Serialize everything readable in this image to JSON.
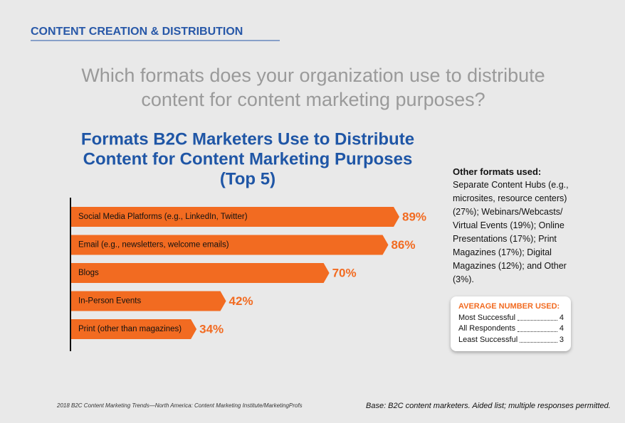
{
  "header": "CONTENT CREATION & DISTRIBUTION",
  "question": [
    "Which formats does your organization use to distribute",
    "content for content marketing purposes?"
  ],
  "chart_data": {
    "type": "bar",
    "title": [
      "Formats B2C Marketers Use to Distribute",
      "Content for Content Marketing Purposes",
      "(Top 5)"
    ],
    "categories": [
      "Social Media Platforms (e.g., LinkedIn, Twitter)",
      "Email (e.g., newsletters, welcome emails)",
      "Blogs",
      "In-Person Events",
      "Print (other than magazines)"
    ],
    "values": [
      89,
      86,
      70,
      42,
      34
    ],
    "value_labels": [
      "89%",
      "86%",
      "70%",
      "42%",
      "34%"
    ],
    "color": "#f26b21"
  },
  "other_formats": {
    "heading": "Other formats used:",
    "text": "Separate Content Hubs (e.g., microsites, resource centers) (27%); Webinars/Webcasts/ Virtual Events (19%); Online Presentations (17%); Print Magazines (17%); Digital Magazines (12%); and Other (3%)."
  },
  "average": {
    "heading": "AVERAGE NUMBER USED:",
    "rows": [
      [
        "Most Successful",
        "4"
      ],
      [
        "All Respondents",
        "4"
      ],
      [
        "Least Successful",
        "3"
      ]
    ]
  },
  "source": "2018 B2C Content Marketing Trends—North America: Content Marketing Institute/MarketingProfs",
  "base": "Base: B2C content marketers. Aided list; multiple responses permitted."
}
